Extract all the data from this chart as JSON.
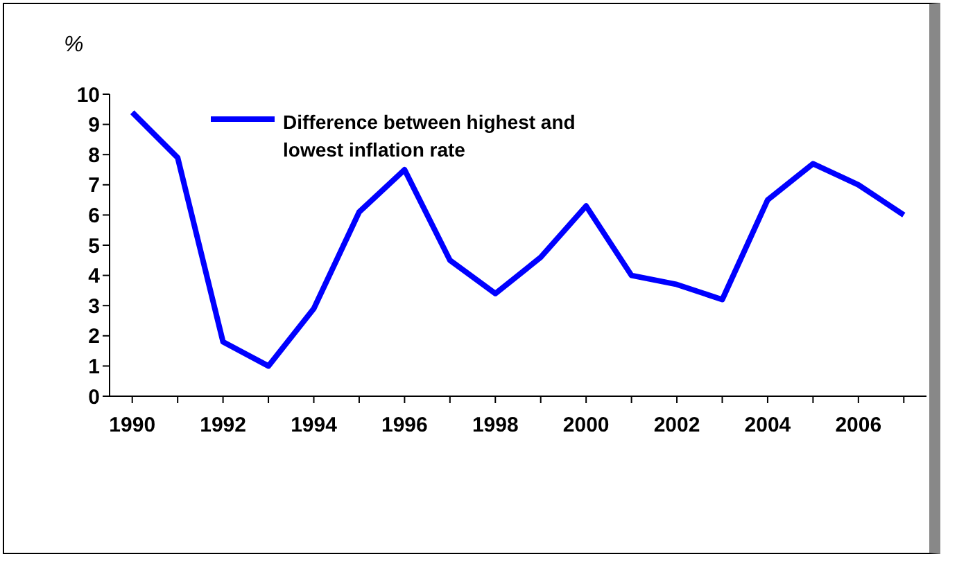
{
  "chart_data": {
    "type": "line",
    "ylabel": "%",
    "categories": [
      "1990",
      null,
      "1992",
      null,
      "1994",
      null,
      "1996",
      null,
      "1998",
      null,
      "2000",
      null,
      "2002",
      null,
      "2004",
      null,
      "2006",
      null
    ],
    "series": [
      {
        "name": "Difference between highest and lowest inflation rate",
        "color": "#0000ff",
        "values": [
          9.4,
          7.9,
          1.8,
          1.0,
          2.9,
          6.1,
          7.5,
          4.5,
          3.4,
          4.6,
          6.3,
          4.0,
          3.7,
          3.2,
          6.5,
          7.7,
          7.0,
          6.0
        ]
      }
    ],
    "ylim": [
      0,
      10
    ],
    "yticks": [
      0,
      1,
      2,
      3,
      4,
      5,
      6,
      7,
      8,
      9,
      10
    ],
    "grid": false,
    "legend": "top left",
    "marker": "none",
    "line_style": "solid"
  }
}
